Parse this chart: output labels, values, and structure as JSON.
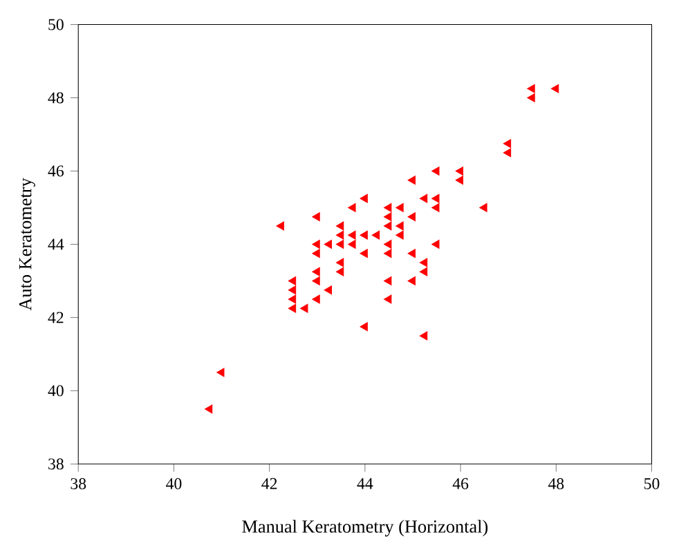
{
  "chart_data": {
    "type": "scatter",
    "xlabel": "Manual Keratometry (Horizontal)",
    "ylabel": "Auto Keratometry",
    "xlim": [
      38,
      50
    ],
    "ylim": [
      38,
      50
    ],
    "xticks": [
      38,
      40,
      42,
      44,
      46,
      48,
      50
    ],
    "yticks": [
      38,
      40,
      42,
      44,
      46,
      48,
      50
    ],
    "marker": "triangle",
    "series": [
      {
        "color": "#ff0000",
        "x": [
          40.75,
          41,
          42.25,
          42.5,
          42.5,
          42.5,
          42.5,
          42.75,
          43,
          43,
          43,
          43,
          43,
          43,
          43.25,
          43.25,
          43.5,
          43.5,
          43.5,
          43.5,
          43.5,
          43.75,
          43.75,
          43.75,
          44,
          44,
          44,
          44,
          44.25,
          44.5,
          44.5,
          44.5,
          44.5,
          44.5,
          44.5,
          44.5,
          44.75,
          44.75,
          44.75,
          45,
          45,
          45,
          45,
          45.25,
          45.25,
          45.25,
          45.25,
          45.5,
          45.5,
          45.5,
          45.5,
          46,
          46,
          46.5,
          47,
          47,
          47.5,
          47.5,
          48
        ],
        "values": [
          39.5,
          40.5,
          44.5,
          43,
          42.75,
          42.5,
          42.25,
          42.25,
          44.75,
          44,
          43.75,
          43.25,
          43,
          42.5,
          44,
          42.75,
          44.5,
          44.25,
          44,
          43.5,
          43.25,
          45,
          44.25,
          44,
          45.25,
          44.25,
          43.75,
          41.75,
          44.25,
          45,
          44.75,
          44.5,
          44,
          43.75,
          43,
          42.5,
          45,
          44.5,
          44.25,
          45.75,
          44.75,
          43.75,
          43,
          45.25,
          43.5,
          43.25,
          41.5,
          46,
          45.25,
          45,
          44,
          46,
          45.75,
          45,
          46.75,
          46.5,
          48.25,
          48,
          48.25
        ]
      }
    ]
  }
}
